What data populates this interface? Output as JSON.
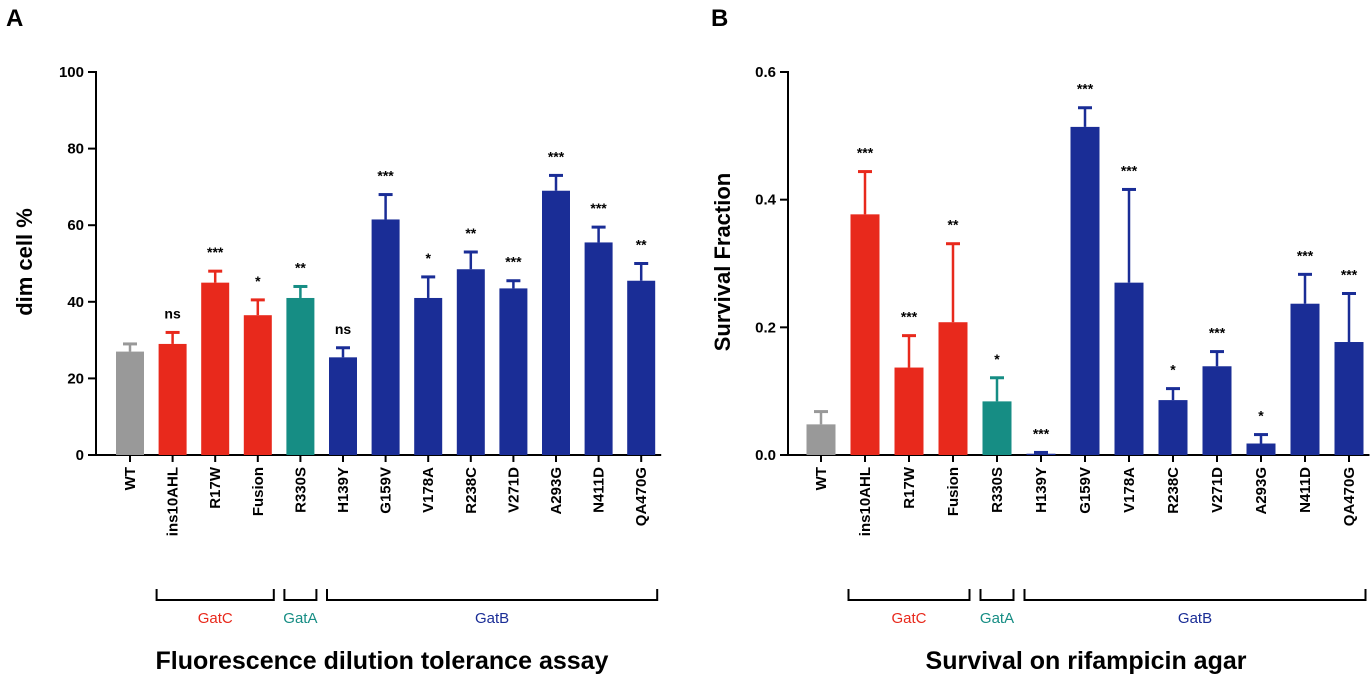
{
  "colors": {
    "WT": "#999999",
    "GatC": "#e8291c",
    "GatA": "#168d84",
    "GatB": "#1a2d96"
  },
  "chart_data": [
    {
      "panel": "A",
      "type": "bar",
      "title": "Fluorescence dilution tolerance assay",
      "xlabel": "Fluorescence dilution tolerance assay",
      "ylabel": "dim cell %",
      "ylim": [
        0,
        100
      ],
      "yticks": [
        "0",
        "20",
        "40",
        "60",
        "80",
        "100"
      ],
      "yticks_values": [
        0,
        20,
        40,
        60,
        80,
        100
      ],
      "categories": [
        "WT",
        "ins10AHL",
        "R17W",
        "Fusion",
        "R330S",
        "H139Y",
        "G159V",
        "V178A",
        "R238C",
        "V271D",
        "A293G",
        "N411D",
        "QA470G"
      ],
      "groups": [
        "WT",
        "GatC",
        "GatC",
        "GatC",
        "GatA",
        "GatB",
        "GatB",
        "GatB",
        "GatB",
        "GatB",
        "GatB",
        "GatB",
        "GatB"
      ],
      "values": [
        27,
        29,
        45,
        36.5,
        41,
        25.5,
        61.5,
        41,
        48.5,
        43.5,
        69,
        55.5,
        45.5
      ],
      "errors": [
        2,
        3,
        3,
        4,
        3,
        2.5,
        6.5,
        5.5,
        4.5,
        2,
        4,
        4,
        4.5
      ],
      "significance": [
        "",
        "ns",
        "***",
        "*",
        "**",
        "ns",
        "***",
        "*",
        "**",
        "***",
        "***",
        "***",
        "**"
      ],
      "group_brackets": [
        {
          "label": "GatC",
          "start": 1,
          "end": 3,
          "group": "GatC"
        },
        {
          "label": "GatA",
          "start": 4,
          "end": 4,
          "group": "GatA"
        },
        {
          "label": "GatB",
          "start": 5,
          "end": 12,
          "group": "GatB"
        }
      ]
    },
    {
      "panel": "B",
      "type": "bar",
      "title": "Survival on rifampicin agar",
      "xlabel": "Survival on rifampicin agar",
      "ylabel": "Survival Fraction",
      "ylim": [
        0,
        0.6
      ],
      "yticks": [
        "0.0",
        "0.2",
        "0.4",
        "0.6"
      ],
      "yticks_values": [
        0,
        0.2,
        0.4,
        0.6
      ],
      "categories": [
        "WT",
        "ins10AHL",
        "R17W",
        "Fusion",
        "R330S",
        "H139Y",
        "G159V",
        "V178A",
        "R238C",
        "V271D",
        "A293G",
        "N411D",
        "QA470G"
      ],
      "groups": [
        "WT",
        "GatC",
        "GatC",
        "GatC",
        "GatA",
        "GatB",
        "GatB",
        "GatB",
        "GatB",
        "GatB",
        "GatB",
        "GatB",
        "GatB"
      ],
      "values": [
        0.048,
        0.377,
        0.137,
        0.208,
        0.084,
        0.002,
        0.514,
        0.27,
        0.086,
        0.139,
        0.018,
        0.237,
        0.177
      ],
      "errors": [
        0.02,
        0.067,
        0.05,
        0.123,
        0.037,
        0.002,
        0.03,
        0.146,
        0.018,
        0.023,
        0.014,
        0.046,
        0.076
      ],
      "significance": [
        "",
        "***",
        "***",
        "**",
        "*",
        "***",
        "***",
        "***",
        "*",
        "***",
        "*",
        "***",
        "***"
      ],
      "group_brackets": [
        {
          "label": "GatC",
          "start": 1,
          "end": 3,
          "group": "GatC"
        },
        {
          "label": "GatA",
          "start": 4,
          "end": 4,
          "group": "GatA"
        },
        {
          "label": "GatB",
          "start": 5,
          "end": 12,
          "group": "GatB"
        }
      ]
    }
  ]
}
